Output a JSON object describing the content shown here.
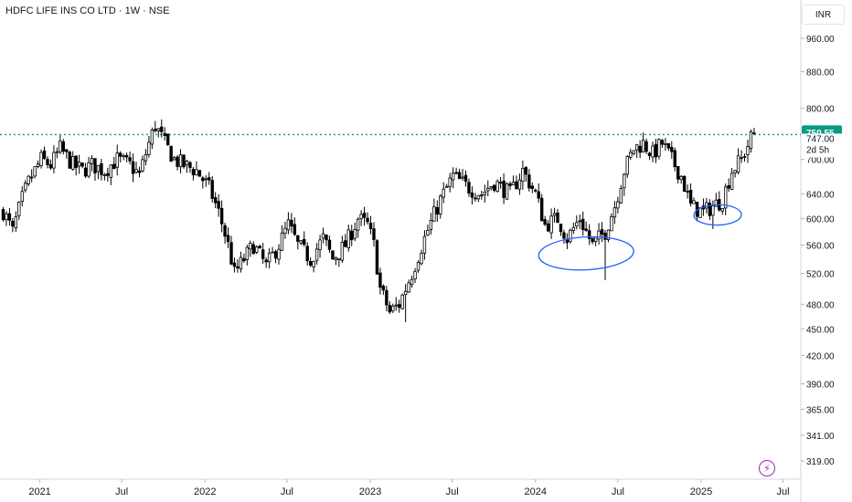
{
  "header": {
    "legend": "HDFC LIFE INS CO LTD · 1W · NSE",
    "currency": "INR"
  },
  "icons": {
    "bolt": "lightning-bolt-icon"
  },
  "colors": {
    "candle_up": "#ffffff",
    "candle_down": "#000000",
    "candle_border": "#000000",
    "price_line": "#089981",
    "annotation": "#2962ff"
  },
  "chart_data": {
    "type": "candlestick",
    "scale": "log",
    "ylim": [
      300,
      1020
    ],
    "y_ticks": [
      "960.00",
      "880.00",
      "800.00",
      "700.00",
      "640.00",
      "600.00",
      "560.00",
      "520.00",
      "480.00",
      "450.00",
      "420.00",
      "390.00",
      "365.00",
      "341.00",
      "319.00"
    ],
    "x_ticks": [
      "2021",
      "Jul",
      "2022",
      "Jul",
      "2023",
      "Jul",
      "2024",
      "Jul",
      "2025",
      "Jul"
    ],
    "last_price": {
      "value": "750.55",
      "label": "750.55",
      "countdown": "2d 5h"
    },
    "price_level": {
      "value": 747.0,
      "label": "747.00",
      "style": "dotted"
    },
    "weekly_close_path": [
      [
        "2020-10-12",
        612
      ],
      [
        "2020-11-02",
        580
      ],
      [
        "2020-11-23",
        632
      ],
      [
        "2020-12-07",
        660
      ],
      [
        "2021-01-04",
        700
      ],
      [
        "2021-01-25",
        690
      ],
      [
        "2021-02-15",
        720
      ],
      [
        "2021-03-15",
        690
      ],
      [
        "2021-04-05",
        680
      ],
      [
        "2021-04-26",
        690
      ],
      [
        "2021-05-24",
        680
      ],
      [
        "2021-06-21",
        700
      ],
      [
        "2021-07-19",
        690
      ],
      [
        "2021-08-09",
        672
      ],
      [
        "2021-08-30",
        730
      ],
      [
        "2021-09-13",
        765
      ],
      [
        "2021-10-04",
        730
      ],
      [
        "2021-10-25",
        700
      ],
      [
        "2021-11-15",
        690
      ],
      [
        "2021-12-13",
        680
      ],
      [
        "2022-01-10",
        650
      ],
      [
        "2022-01-31",
        610
      ],
      [
        "2022-02-21",
        560
      ],
      [
        "2022-03-07",
        520
      ],
      [
        "2022-03-28",
        540
      ],
      [
        "2022-04-18",
        560
      ],
      [
        "2022-05-16",
        530
      ],
      [
        "2022-06-13",
        560
      ],
      [
        "2022-07-04",
        590
      ],
      [
        "2022-07-25",
        560
      ],
      [
        "2022-08-22",
        540
      ],
      [
        "2022-09-19",
        570
      ],
      [
        "2022-10-10",
        540
      ],
      [
        "2022-11-07",
        560
      ],
      [
        "2022-12-05",
        600
      ],
      [
        "2022-12-26",
        590
      ],
      [
        "2023-01-09",
        560
      ],
      [
        "2023-01-23",
        500
      ],
      [
        "2023-02-13",
        470
      ],
      [
        "2023-03-06",
        480
      ],
      [
        "2023-04-03",
        520
      ],
      [
        "2023-05-01",
        570
      ],
      [
        "2023-06-05",
        630
      ],
      [
        "2023-07-03",
        670
      ],
      [
        "2023-08-07",
        650
      ],
      [
        "2023-09-04",
        640
      ],
      [
        "2023-10-02",
        660
      ],
      [
        "2023-11-06",
        640
      ],
      [
        "2023-12-04",
        680
      ],
      [
        "2024-01-01",
        640
      ],
      [
        "2024-01-22",
        590
      ],
      [
        "2024-02-19",
        600
      ],
      [
        "2024-03-11",
        570
      ],
      [
        "2024-04-08",
        600
      ],
      [
        "2024-05-06",
        560
      ],
      [
        "2024-06-03",
        580
      ],
      [
        "2024-06-24",
        620
      ],
      [
        "2024-07-15",
        680
      ],
      [
        "2024-08-05",
        720
      ],
      [
        "2024-08-26",
        730
      ],
      [
        "2024-09-16",
        710
      ],
      [
        "2024-10-07",
        730
      ],
      [
        "2024-10-28",
        700
      ],
      [
        "2024-11-18",
        670
      ],
      [
        "2024-12-09",
        620
      ],
      [
        "2025-01-06",
        610
      ],
      [
        "2025-01-27",
        620
      ],
      [
        "2025-02-17",
        630
      ],
      [
        "2025-03-10",
        680
      ],
      [
        "2025-03-31",
        700
      ],
      [
        "2025-04-21",
        740
      ],
      [
        "2025-04-28",
        750.55
      ]
    ],
    "wick_extremes": [
      {
        "date": "2021-09-13",
        "high": 774
      },
      {
        "date": "2023-03-20",
        "low": 458
      },
      {
        "date": "2024-06-03",
        "low": 511
      },
      {
        "date": "2025-01-27",
        "low": 584
      }
    ],
    "annotations": [
      {
        "shape": "ellipse",
        "date_start": "2024-01-08",
        "date_end": "2024-08-05",
        "price_low": 525,
        "price_high": 572
      },
      {
        "shape": "ellipse",
        "date_start": "2024-12-16",
        "date_end": "2025-03-31",
        "price_low": 590,
        "price_high": 622
      }
    ]
  }
}
